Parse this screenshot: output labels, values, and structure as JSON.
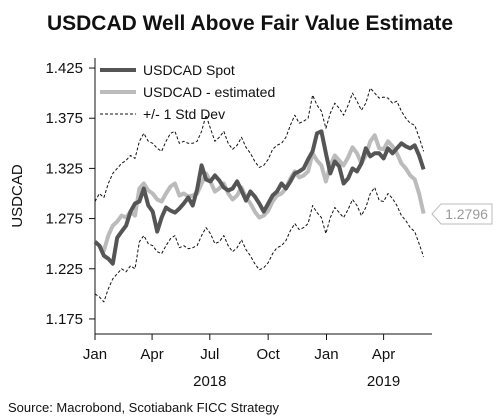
{
  "chart_data": {
    "type": "line",
    "title": "USDCAD Well Above Fair Value Estimate",
    "ylabel": "USDCAD",
    "xlabel": "",
    "ylim": [
      1.16,
      1.435
    ],
    "xlim": [
      "2018-01-01",
      "2019-06-10"
    ],
    "yticks": [
      "1.425",
      "1.375",
      "1.325",
      "1.275",
      "1.225",
      "1.175"
    ],
    "ytick_values": [
      1.425,
      1.375,
      1.325,
      1.275,
      1.225,
      1.175
    ],
    "xticks": [
      {
        "label": "Jan",
        "date": "2018-01-01"
      },
      {
        "label": "Apr",
        "date": "2018-04-01"
      },
      {
        "label": "Jul",
        "date": "2018-07-01"
      },
      {
        "label": "Oct",
        "date": "2018-10-01"
      },
      {
        "label": "Jan",
        "date": "2019-01-01"
      },
      {
        "label": "Apr",
        "date": "2019-04-01"
      }
    ],
    "year_labels": [
      {
        "label": "2018",
        "date": "2018-07-01"
      },
      {
        "label": "2019",
        "date": "2019-04-01"
      }
    ],
    "legend": {
      "placement": "top-left",
      "entries": [
        "USDCAD Spot",
        "USDCAD - estimated",
        "+/- 1 Std Dev"
      ]
    },
    "callout": {
      "label": "1.2796",
      "value": 1.2796
    },
    "grid": false,
    "series": [
      {
        "name": "USDCAD Spot",
        "color": "#555555",
        "style": "solid-thick",
        "x": [
          "2018-01-01",
          "2018-01-08",
          "2018-01-15",
          "2018-01-22",
          "2018-01-29",
          "2018-02-05",
          "2018-02-12",
          "2018-02-19",
          "2018-02-26",
          "2018-03-05",
          "2018-03-12",
          "2018-03-19",
          "2018-03-26",
          "2018-04-02",
          "2018-04-09",
          "2018-04-16",
          "2018-04-23",
          "2018-04-30",
          "2018-05-07",
          "2018-05-14",
          "2018-05-21",
          "2018-05-28",
          "2018-06-04",
          "2018-06-11",
          "2018-06-18",
          "2018-06-25",
          "2018-07-02",
          "2018-07-09",
          "2018-07-16",
          "2018-07-23",
          "2018-07-30",
          "2018-08-06",
          "2018-08-13",
          "2018-08-20",
          "2018-08-27",
          "2018-09-03",
          "2018-09-10",
          "2018-09-17",
          "2018-09-24",
          "2018-10-01",
          "2018-10-08",
          "2018-10-15",
          "2018-10-22",
          "2018-10-29",
          "2018-11-05",
          "2018-11-12",
          "2018-11-19",
          "2018-11-26",
          "2018-12-03",
          "2018-12-10",
          "2018-12-17",
          "2018-12-24",
          "2018-12-31",
          "2019-01-07",
          "2019-01-14",
          "2019-01-21",
          "2019-01-28",
          "2019-02-04",
          "2019-02-11",
          "2019-02-18",
          "2019-02-25",
          "2019-03-04",
          "2019-03-11",
          "2019-03-18",
          "2019-03-25",
          "2019-04-01",
          "2019-04-08",
          "2019-04-15",
          "2019-04-22",
          "2019-04-29",
          "2019-05-06",
          "2019-05-13",
          "2019-05-20",
          "2019-05-27",
          "2019-06-03"
        ],
        "y": [
          1.252,
          1.248,
          1.238,
          1.235,
          1.23,
          1.256,
          1.262,
          1.268,
          1.282,
          1.29,
          1.292,
          1.305,
          1.288,
          1.282,
          1.262,
          1.276,
          1.286,
          1.283,
          1.281,
          1.285,
          1.29,
          1.296,
          1.288,
          1.304,
          1.328,
          1.314,
          1.312,
          1.318,
          1.313,
          1.306,
          1.303,
          1.305,
          1.312,
          1.303,
          1.293,
          1.302,
          1.297,
          1.29,
          1.282,
          1.29,
          1.298,
          1.302,
          1.31,
          1.305,
          1.312,
          1.32,
          1.322,
          1.325,
          1.334,
          1.342,
          1.36,
          1.362,
          1.34,
          1.32,
          1.332,
          1.327,
          1.31,
          1.315,
          1.325,
          1.322,
          1.33,
          1.345,
          1.337,
          1.34,
          1.34,
          1.335,
          1.345,
          1.34,
          1.345,
          1.35,
          1.347,
          1.345,
          1.348,
          1.338,
          1.324
        ]
      },
      {
        "name": "USDCAD - estimated",
        "color": "#bbbbbb",
        "style": "solid-thick",
        "x": [
          "2018-01-01",
          "2018-01-08",
          "2018-01-15",
          "2018-01-22",
          "2018-01-29",
          "2018-02-05",
          "2018-02-12",
          "2018-02-19",
          "2018-02-26",
          "2018-03-05",
          "2018-03-12",
          "2018-03-19",
          "2018-03-26",
          "2018-04-02",
          "2018-04-09",
          "2018-04-16",
          "2018-04-23",
          "2018-04-30",
          "2018-05-07",
          "2018-05-14",
          "2018-05-21",
          "2018-05-28",
          "2018-06-04",
          "2018-06-11",
          "2018-06-18",
          "2018-06-25",
          "2018-07-02",
          "2018-07-09",
          "2018-07-16",
          "2018-07-23",
          "2018-07-30",
          "2018-08-06",
          "2018-08-13",
          "2018-08-20",
          "2018-08-27",
          "2018-09-03",
          "2018-09-10",
          "2018-09-17",
          "2018-09-24",
          "2018-10-01",
          "2018-10-08",
          "2018-10-15",
          "2018-10-22",
          "2018-10-29",
          "2018-11-05",
          "2018-11-12",
          "2018-11-19",
          "2018-11-26",
          "2018-12-03",
          "2018-12-10",
          "2018-12-17",
          "2018-12-24",
          "2018-12-31",
          "2019-01-07",
          "2019-01-14",
          "2019-01-21",
          "2019-01-28",
          "2019-02-04",
          "2019-02-11",
          "2019-02-18",
          "2019-02-25",
          "2019-03-04",
          "2019-03-11",
          "2019-03-18",
          "2019-03-25",
          "2019-04-01",
          "2019-04-08",
          "2019-04-15",
          "2019-04-22",
          "2019-04-29",
          "2019-05-06",
          "2019-05-13",
          "2019-05-20",
          "2019-05-27",
          "2019-06-03"
        ],
        "y": [
          1.252,
          1.248,
          1.243,
          1.258,
          1.268,
          1.272,
          1.278,
          1.276,
          1.282,
          1.278,
          1.305,
          1.31,
          1.303,
          1.3,
          1.294,
          1.292,
          1.3,
          1.307,
          1.31,
          1.298,
          1.3,
          1.297,
          1.298,
          1.3,
          1.31,
          1.32,
          1.312,
          1.302,
          1.305,
          1.31,
          1.3,
          1.294,
          1.298,
          1.306,
          1.296,
          1.29,
          1.282,
          1.276,
          1.278,
          1.283,
          1.292,
          1.298,
          1.3,
          1.305,
          1.315,
          1.322,
          1.316,
          1.318,
          1.322,
          1.34,
          1.333,
          1.328,
          1.312,
          1.328,
          1.338,
          1.333,
          1.328,
          1.336,
          1.346,
          1.34,
          1.33,
          1.338,
          1.352,
          1.358,
          1.345,
          1.344,
          1.352,
          1.347,
          1.34,
          1.33,
          1.325,
          1.318,
          1.314,
          1.3,
          1.28
        ]
      },
      {
        "name": "+/- 1 Std Dev",
        "color": "#111111",
        "style": "dashed",
        "x": [
          "2018-01-01",
          "2018-01-08",
          "2018-01-15",
          "2018-01-22",
          "2018-01-29",
          "2018-02-05",
          "2018-02-12",
          "2018-02-19",
          "2018-02-26",
          "2018-03-05",
          "2018-03-12",
          "2018-03-19",
          "2018-03-26",
          "2018-04-02",
          "2018-04-09",
          "2018-04-16",
          "2018-04-23",
          "2018-04-30",
          "2018-05-07",
          "2018-05-14",
          "2018-05-21",
          "2018-05-28",
          "2018-06-04",
          "2018-06-11",
          "2018-06-18",
          "2018-06-25",
          "2018-07-02",
          "2018-07-09",
          "2018-07-16",
          "2018-07-23",
          "2018-07-30",
          "2018-08-06",
          "2018-08-13",
          "2018-08-20",
          "2018-08-27",
          "2018-09-03",
          "2018-09-10",
          "2018-09-17",
          "2018-09-24",
          "2018-10-01",
          "2018-10-08",
          "2018-10-15",
          "2018-10-22",
          "2018-10-29",
          "2018-11-05",
          "2018-11-12",
          "2018-11-19",
          "2018-11-26",
          "2018-12-03",
          "2018-12-10",
          "2018-12-17",
          "2018-12-24",
          "2018-12-31",
          "2019-01-07",
          "2019-01-14",
          "2019-01-21",
          "2019-01-28",
          "2019-02-04",
          "2019-02-11",
          "2019-02-18",
          "2019-02-25",
          "2019-03-04",
          "2019-03-11",
          "2019-03-18",
          "2019-03-25",
          "2019-04-01",
          "2019-04-08",
          "2019-04-15",
          "2019-04-22",
          "2019-04-29",
          "2019-05-06",
          "2019-05-13",
          "2019-05-20",
          "2019-05-27",
          "2019-06-03"
        ],
        "y": [
          1.292,
          1.3,
          1.296,
          1.31,
          1.32,
          1.325,
          1.33,
          1.333,
          1.338,
          1.335,
          1.352,
          1.36,
          1.352,
          1.35,
          1.345,
          1.342,
          1.352,
          1.36,
          1.362,
          1.35,
          1.352,
          1.35,
          1.35,
          1.352,
          1.362,
          1.378,
          1.365,
          1.352,
          1.356,
          1.362,
          1.35,
          1.344,
          1.348,
          1.356,
          1.346,
          1.34,
          1.332,
          1.326,
          1.328,
          1.334,
          1.344,
          1.348,
          1.35,
          1.356,
          1.368,
          1.378,
          1.37,
          1.372,
          1.375,
          1.398,
          1.388,
          1.382,
          1.365,
          1.38,
          1.39,
          1.385,
          1.378,
          1.388,
          1.4,
          1.392,
          1.383,
          1.39,
          1.405,
          1.4,
          1.395,
          1.396,
          1.395,
          1.39,
          1.392,
          1.382,
          1.375,
          1.37,
          1.368,
          1.356,
          1.342
        ]
      },
      {
        "name": "+/- 1 Std Dev",
        "color": "#111111",
        "style": "dashed",
        "x": [
          "2018-01-01",
          "2018-01-08",
          "2018-01-15",
          "2018-01-22",
          "2018-01-29",
          "2018-02-05",
          "2018-02-12",
          "2018-02-19",
          "2018-02-26",
          "2018-03-05",
          "2018-03-12",
          "2018-03-19",
          "2018-03-26",
          "2018-04-02",
          "2018-04-09",
          "2018-04-16",
          "2018-04-23",
          "2018-04-30",
          "2018-05-07",
          "2018-05-14",
          "2018-05-21",
          "2018-05-28",
          "2018-06-04",
          "2018-06-11",
          "2018-06-18",
          "2018-06-25",
          "2018-07-02",
          "2018-07-09",
          "2018-07-16",
          "2018-07-23",
          "2018-07-30",
          "2018-08-06",
          "2018-08-13",
          "2018-08-20",
          "2018-08-27",
          "2018-09-03",
          "2018-09-10",
          "2018-09-17",
          "2018-09-24",
          "2018-10-01",
          "2018-10-08",
          "2018-10-15",
          "2018-10-22",
          "2018-10-29",
          "2018-11-05",
          "2018-11-12",
          "2018-11-19",
          "2018-11-26",
          "2018-12-03",
          "2018-12-10",
          "2018-12-17",
          "2018-12-24",
          "2018-12-31",
          "2019-01-07",
          "2019-01-14",
          "2019-01-21",
          "2019-01-28",
          "2019-02-04",
          "2019-02-11",
          "2019-02-18",
          "2019-02-25",
          "2019-03-04",
          "2019-03-11",
          "2019-03-18",
          "2019-03-25",
          "2019-04-01",
          "2019-04-08",
          "2019-04-15",
          "2019-04-22",
          "2019-04-29",
          "2019-05-06",
          "2019-05-13",
          "2019-05-20",
          "2019-05-27",
          "2019-06-03"
        ],
        "y": [
          1.2,
          1.197,
          1.192,
          1.205,
          1.215,
          1.22,
          1.225,
          1.222,
          1.228,
          1.225,
          1.252,
          1.258,
          1.25,
          1.248,
          1.242,
          1.24,
          1.248,
          1.255,
          1.258,
          1.246,
          1.248,
          1.245,
          1.246,
          1.248,
          1.258,
          1.266,
          1.26,
          1.25,
          1.252,
          1.258,
          1.248,
          1.242,
          1.246,
          1.254,
          1.244,
          1.238,
          1.23,
          1.224,
          1.226,
          1.231,
          1.24,
          1.246,
          1.248,
          1.253,
          1.263,
          1.27,
          1.264,
          1.266,
          1.27,
          1.288,
          1.281,
          1.276,
          1.26,
          1.276,
          1.286,
          1.281,
          1.276,
          1.284,
          1.294,
          1.288,
          1.278,
          1.286,
          1.3,
          1.306,
          1.293,
          1.292,
          1.3,
          1.295,
          1.288,
          1.278,
          1.273,
          1.266,
          1.262,
          1.25,
          1.237
        ]
      }
    ]
  },
  "footer": {
    "source": "Source: Macrobond, Scotiabank FICC Strategy"
  }
}
